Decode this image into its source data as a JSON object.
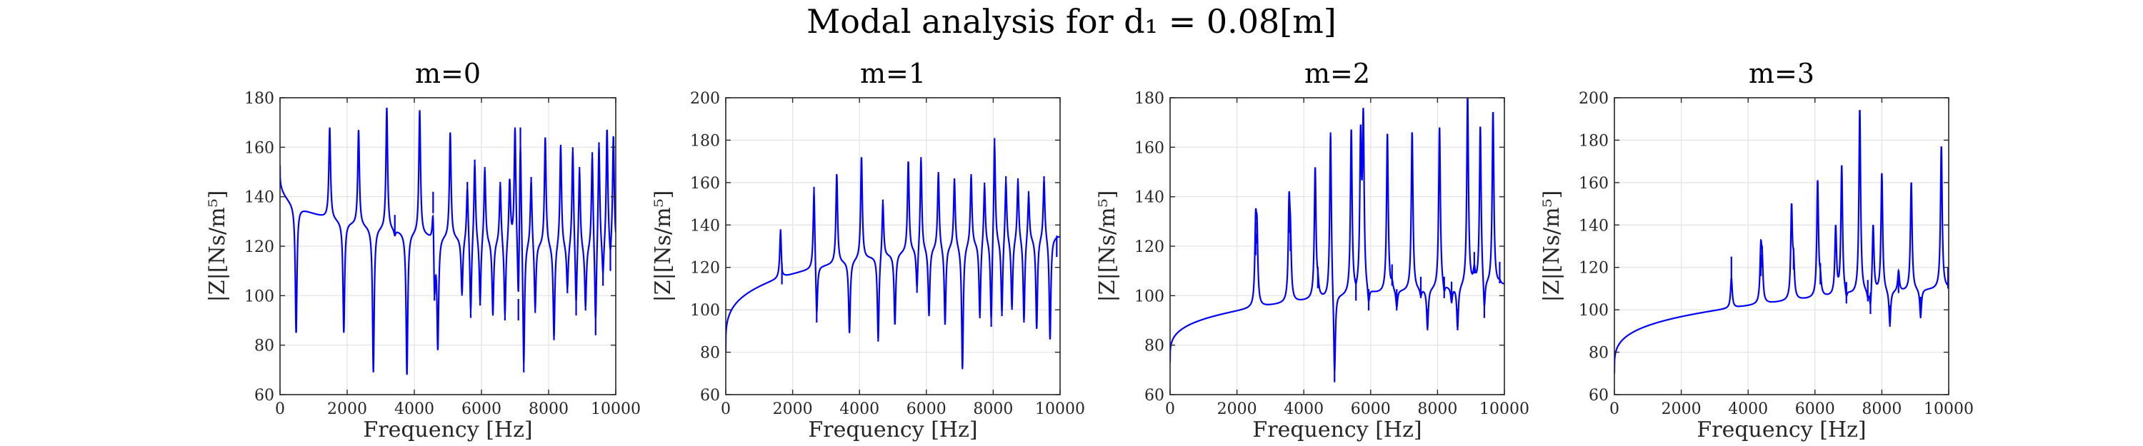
{
  "figure": {
    "suptitle": "Modal analysis for d₁ = 0.08[m]"
  },
  "chart_data": [
    {
      "type": "line",
      "title": "m=0",
      "xlabel": "Frequency [Hz]",
      "ylabel": "|Z|[Ns/m⁵]",
      "xlim": [
        0,
        10000
      ],
      "ylim": [
        60,
        180
      ],
      "xticks": [
        0,
        2000,
        4000,
        6000,
        8000,
        10000
      ],
      "yticks": [
        60,
        80,
        100,
        120,
        140,
        160,
        180
      ],
      "grid": true,
      "series": [
        {
          "color": "#0000ff",
          "start": 153,
          "end": 118,
          "features": [
            [
              480,
              85,
              "a"
            ],
            [
              1480,
              168,
              "r"
            ],
            [
              1900,
              85,
              "a"
            ],
            [
              2340,
              167,
              "r"
            ],
            [
              2780,
              69,
              "a"
            ],
            [
              3180,
              176,
              "r"
            ],
            [
              3420,
              124,
              "a"
            ],
            [
              3780,
              68,
              "a"
            ],
            [
              4160,
              175,
              "r"
            ],
            [
              4560,
              142,
              "r"
            ],
            [
              4600,
              98,
              "a"
            ],
            [
              4700,
              79,
              "a"
            ],
            [
              5070,
              166,
              "r"
            ],
            [
              5420,
              100,
              "a"
            ],
            [
              5580,
              146,
              "r"
            ],
            [
              5680,
              91,
              "a"
            ],
            [
              5800,
              155,
              "r"
            ],
            [
              5960,
              96,
              "a"
            ],
            [
              6100,
              152,
              "r"
            ],
            [
              6340,
              92,
              "a"
            ],
            [
              6560,
              146,
              "r"
            ],
            [
              6700,
              90,
              "a"
            ],
            [
              6840,
              147,
              "r"
            ],
            [
              7000,
              168,
              "r"
            ],
            [
              7100,
              90,
              "a"
            ],
            [
              7160,
              168,
              "r"
            ],
            [
              7260,
              69,
              "a"
            ],
            [
              7480,
              148,
              "r"
            ],
            [
              7600,
              93,
              "a"
            ],
            [
              7900,
              164,
              "r"
            ],
            [
              8160,
              82,
              "a"
            ],
            [
              8360,
              161,
              "r"
            ],
            [
              8560,
              101,
              "a"
            ],
            [
              8720,
              160,
              "r"
            ],
            [
              8820,
              92,
              "a"
            ],
            [
              8920,
              152,
              "r"
            ],
            [
              9100,
              94,
              "a"
            ],
            [
              9300,
              158,
              "r"
            ],
            [
              9400,
              84,
              "a"
            ],
            [
              9500,
              162,
              "r"
            ],
            [
              9620,
              104,
              "a"
            ],
            [
              9740,
              167,
              "r"
            ],
            [
              9840,
              110,
              "a"
            ],
            [
              9930,
              164,
              "r"
            ]
          ]
        }
      ]
    },
    {
      "type": "line",
      "title": "m=1",
      "xlabel": "Frequency [Hz]",
      "ylabel": "|Z|[Ns/m⁵]",
      "xlim": [
        0,
        10000
      ],
      "ylim": [
        60,
        200
      ],
      "xticks": [
        0,
        2000,
        4000,
        6000,
        8000,
        10000
      ],
      "yticks": [
        60,
        80,
        100,
        120,
        140,
        160,
        180,
        200
      ],
      "grid": true,
      "series": [
        {
          "color": "#0000ff",
          "start": 80,
          "end": 135,
          "features": [
            [
              1640,
              138,
              "r"
            ],
            [
              1680,
              112,
              "a"
            ],
            [
              2640,
              158,
              "r"
            ],
            [
              2720,
              94,
              "a"
            ],
            [
              3320,
              164,
              "r"
            ],
            [
              3700,
              89,
              "a"
            ],
            [
              4060,
              172,
              "r"
            ],
            [
              4560,
              85,
              "a"
            ],
            [
              4700,
              152,
              "r"
            ],
            [
              5060,
              93,
              "a"
            ],
            [
              5460,
              170,
              "r"
            ],
            [
              5720,
              108,
              "a"
            ],
            [
              5840,
              172,
              "r"
            ],
            [
              6080,
              97,
              "a"
            ],
            [
              6360,
              165,
              "r"
            ],
            [
              6560,
              93,
              "a"
            ],
            [
              6840,
              162,
              "r"
            ],
            [
              7080,
              72,
              "a"
            ],
            [
              7340,
              164,
              "r"
            ],
            [
              7600,
              96,
              "a"
            ],
            [
              7740,
              160,
              "r"
            ],
            [
              7940,
              92,
              "a"
            ],
            [
              8040,
              181,
              "r"
            ],
            [
              8260,
              97,
              "a"
            ],
            [
              8380,
              163,
              "r"
            ],
            [
              8560,
              100,
              "a"
            ],
            [
              8740,
              162,
              "r"
            ],
            [
              8920,
              94,
              "a"
            ],
            [
              9060,
              156,
              "r"
            ],
            [
              9300,
              91,
              "a"
            ],
            [
              9520,
              163,
              "r"
            ],
            [
              9700,
              86,
              "a"
            ],
            [
              9900,
              135,
              "r"
            ]
          ]
        }
      ]
    },
    {
      "type": "line",
      "title": "m=2",
      "xlabel": "Frequency [Hz]",
      "ylabel": "|Z|[Ns/m⁵]",
      "xlim": [
        0,
        10000
      ],
      "ylim": [
        60,
        180
      ],
      "xticks": [
        0,
        2000,
        4000,
        6000,
        8000,
        10000
      ],
      "yticks": [
        60,
        80,
        100,
        120,
        140,
        160,
        180
      ],
      "grid": true,
      "series": [
        {
          "color": "#0000ff",
          "start": 73,
          "end": 104,
          "features": [
            [
              2560,
              125,
              "r"
            ],
            [
              2600,
              121,
              "a"
            ],
            [
              3560,
              134,
              "r"
            ],
            [
              3600,
              118,
              "a"
            ],
            [
              4340,
              151,
              "r"
            ],
            [
              4420,
              103,
              "a"
            ],
            [
              4800,
              166,
              "r"
            ],
            [
              4920,
              65,
              "a"
            ],
            [
              5420,
              166,
              "r"
            ],
            [
              5560,
              98,
              "a"
            ],
            [
              5700,
              160,
              "r"
            ],
            [
              5780,
              168,
              "r"
            ],
            [
              5940,
              94,
              "a"
            ],
            [
              6500,
              165,
              "r"
            ],
            [
              6640,
              104,
              "a"
            ],
            [
              6780,
              94,
              "a"
            ],
            [
              7240,
              166,
              "r"
            ],
            [
              7500,
              99,
              "a"
            ],
            [
              7700,
              86,
              "a"
            ],
            [
              8060,
              168,
              "r"
            ],
            [
              8200,
              99,
              "a"
            ],
            [
              8420,
              97,
              "a"
            ],
            [
              8600,
              86,
              "a"
            ],
            [
              8900,
              180,
              "r"
            ],
            [
              9100,
              109,
              "a"
            ],
            [
              9280,
              168,
              "r"
            ],
            [
              9400,
              91,
              "a"
            ],
            [
              9660,
              174,
              "r"
            ],
            [
              9860,
              105,
              "a"
            ]
          ]
        }
      ]
    },
    {
      "type": "line",
      "title": "m=3",
      "xlabel": "Frequency [Hz]",
      "ylabel": "|Z|[Ns/m⁵]",
      "xlim": [
        0,
        10000
      ],
      "ylim": [
        60,
        200
      ],
      "xticks": [
        0,
        2000,
        4000,
        6000,
        8000,
        10000
      ],
      "yticks": [
        60,
        80,
        100,
        120,
        140,
        160,
        180,
        200
      ],
      "grid": true,
      "series": [
        {
          "color": "#0000ff",
          "start": 70,
          "end": 110,
          "features": [
            [
              3500,
              115,
              "a"
            ],
            [
              4380,
              126,
              "r"
            ],
            [
              4420,
              120,
              "a"
            ],
            [
              5300,
              147,
              "r"
            ],
            [
              5360,
              119,
              "a"
            ],
            [
              6080,
              160,
              "r"
            ],
            [
              6160,
              112,
              "a"
            ],
            [
              6620,
              138,
              "r"
            ],
            [
              6800,
              167,
              "r"
            ],
            [
              6940,
              103,
              "a"
            ],
            [
              7340,
              194,
              "r"
            ],
            [
              7580,
              104,
              "a"
            ],
            [
              7660,
              98,
              "a"
            ],
            [
              7740,
              140,
              "r"
            ],
            [
              8000,
              164,
              "r"
            ],
            [
              8240,
              92,
              "a"
            ],
            [
              8500,
              118,
              "r"
            ],
            [
              8880,
              160,
              "r"
            ],
            [
              9160,
              96,
              "a"
            ],
            [
              9780,
              177,
              "r"
            ],
            [
              9980,
              110,
              "a"
            ]
          ]
        }
      ]
    }
  ]
}
